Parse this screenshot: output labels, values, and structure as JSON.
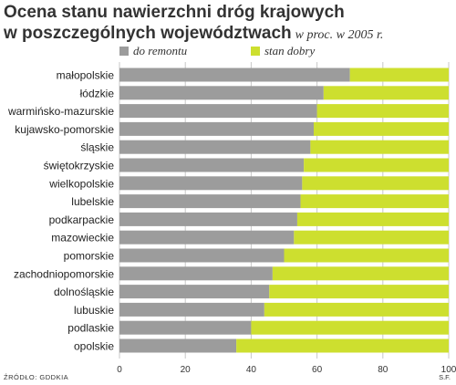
{
  "title_line1": "Ocena stanu nawierzchni dróg krajowych",
  "title_line2": "w poszczególnych województwach",
  "subtitle": "w proc. w 2005 r.",
  "source": "ŹRÓDŁO: GDDKIA",
  "credit": "S.F.",
  "colors": {
    "do_remontu": "#9c9c9c",
    "stan_dobry": "#cddf2f",
    "grid": "#c8c8c8"
  },
  "chart_data": {
    "type": "bar",
    "orientation": "horizontal",
    "stacked": true,
    "categories": [
      "małopolskie",
      "łódzkie",
      "warmińsko-mazurskie",
      "kujawsko-pomorskie",
      "śląskie",
      "świętokrzyskie",
      "wielkopolskie",
      "lubelskie",
      "podkarpackie",
      "mazowieckie",
      "pomorskie",
      "zachodniopomorskie",
      "dolnośląskie",
      "lubuskie",
      "podlaskie",
      "opolskie"
    ],
    "series": [
      {
        "name": "do remontu",
        "values": [
          70,
          62,
          60,
          59,
          58,
          56,
          55.5,
          55,
          54,
          53,
          50,
          46.5,
          45.5,
          44,
          40,
          35.5
        ]
      },
      {
        "name": "stan dobry",
        "values": [
          30,
          38,
          40,
          41,
          42,
          44,
          44.5,
          45,
          46,
          47,
          50,
          53.5,
          54.5,
          56,
          60,
          64.5
        ]
      }
    ],
    "xlim": [
      0,
      100
    ],
    "xticks": [
      0,
      20,
      40,
      60,
      80,
      100
    ],
    "grid": true,
    "legend_position": "top"
  }
}
